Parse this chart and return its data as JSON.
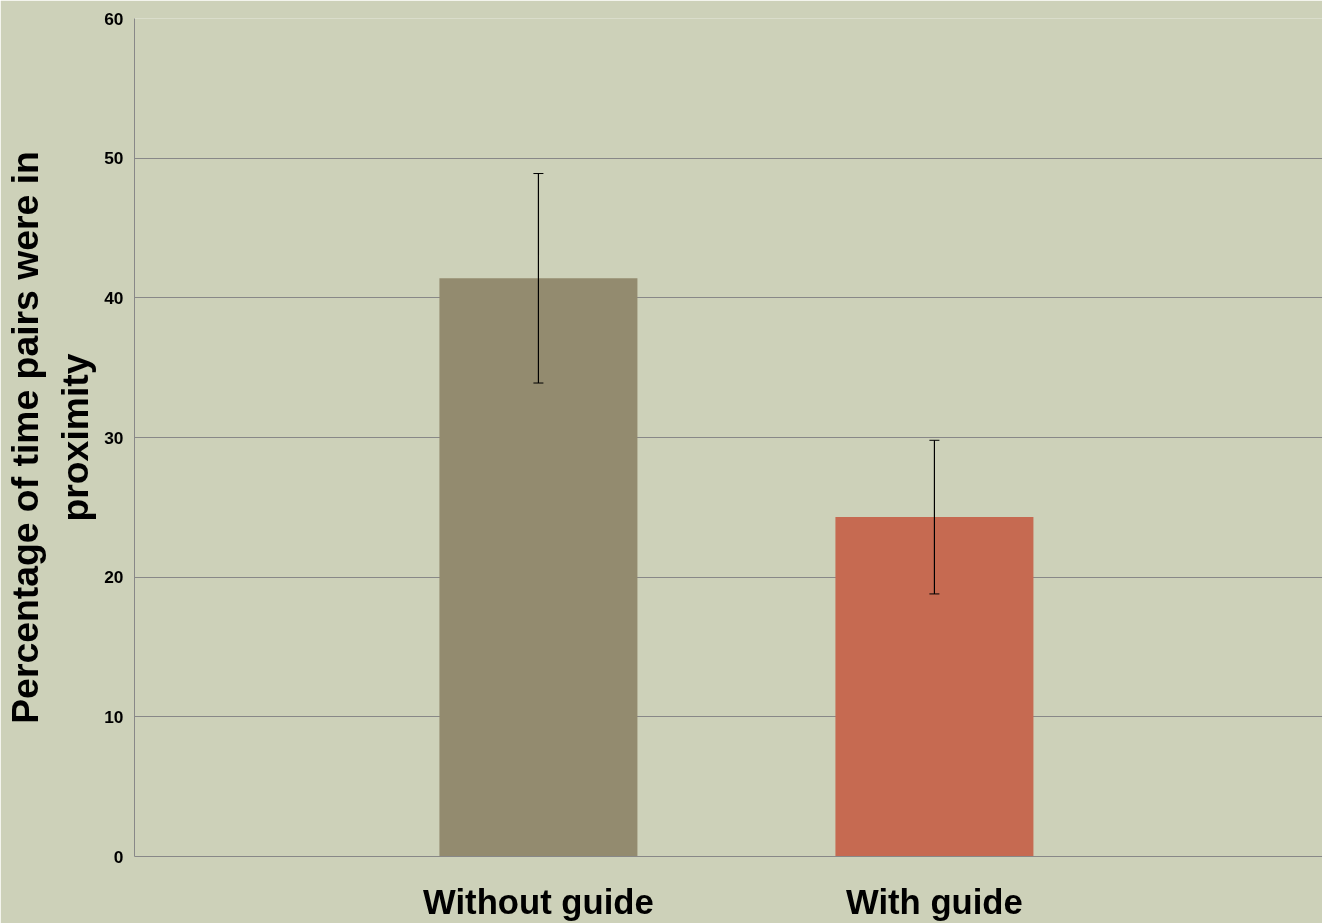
{
  "chart_data": {
    "type": "bar",
    "categories": [
      "Without guide",
      "With guide"
    ],
    "values": [
      41.4,
      24.3
    ],
    "colors": [
      "#938b6f",
      "#c66a51"
    ],
    "errors": [
      7.5,
      5.5
    ],
    "ylabel": "Percentage of time pairs were in proximity",
    "ylim": [
      0,
      60
    ],
    "yticks": [
      0,
      10,
      20,
      30,
      40,
      50,
      60
    ],
    "grid": "y"
  }
}
